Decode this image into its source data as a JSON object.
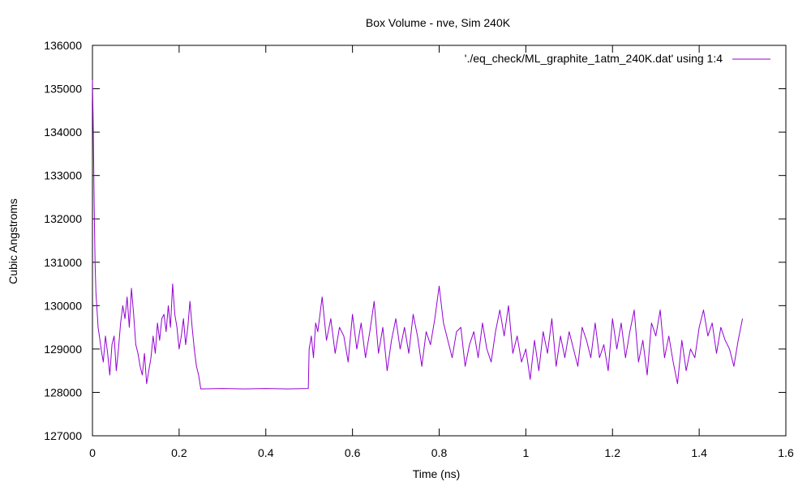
{
  "chart_data": {
    "type": "line",
    "title": "Box Volume - nve, Sim 240K",
    "xlabel": "Time (ns)",
    "ylabel": "Cubic Angstroms",
    "xlim": [
      0,
      1.6
    ],
    "ylim": [
      127000,
      136000
    ],
    "x_ticks": [
      0,
      0.2,
      0.4,
      0.6,
      0.8,
      1,
      1.2,
      1.4,
      1.6
    ],
    "x_tick_labels": [
      "0",
      "0.2",
      "0.4",
      "0.6",
      "0.8",
      "1",
      "1.2",
      "1.4",
      "1.6"
    ],
    "y_ticks": [
      127000,
      128000,
      129000,
      130000,
      131000,
      132000,
      133000,
      134000,
      135000,
      136000
    ],
    "y_tick_labels": [
      "127000",
      "128000",
      "129000",
      "130000",
      "131000",
      "132000",
      "133000",
      "134000",
      "135000",
      "136000"
    ],
    "grid": false,
    "legend_position": "top-right",
    "series": [
      {
        "name": "'./eq_check/ML_graphite_1atm_240K.dat' using 1:4",
        "color": "#9400d3",
        "x": [
          0,
          0.002,
          0.004,
          0.006,
          0.008,
          0.01,
          0.013,
          0.016,
          0.02,
          0.025,
          0.03,
          0.035,
          0.04,
          0.045,
          0.05,
          0.055,
          0.06,
          0.065,
          0.07,
          0.075,
          0.08,
          0.085,
          0.09,
          0.095,
          0.1,
          0.105,
          0.11,
          0.115,
          0.12,
          0.125,
          0.13,
          0.135,
          0.14,
          0.145,
          0.15,
          0.155,
          0.16,
          0.165,
          0.17,
          0.175,
          0.18,
          0.185,
          0.19,
          0.195,
          0.2,
          0.205,
          0.21,
          0.215,
          0.22,
          0.225,
          0.23,
          0.235,
          0.24,
          0.245,
          0.25,
          0.3,
          0.35,
          0.4,
          0.45,
          0.498,
          0.5,
          0.505,
          0.51,
          0.515,
          0.52,
          0.525,
          0.53,
          0.54,
          0.55,
          0.56,
          0.57,
          0.58,
          0.59,
          0.6,
          0.61,
          0.62,
          0.63,
          0.64,
          0.65,
          0.66,
          0.67,
          0.68,
          0.69,
          0.7,
          0.71,
          0.72,
          0.73,
          0.74,
          0.75,
          0.76,
          0.77,
          0.78,
          0.79,
          0.8,
          0.81,
          0.82,
          0.83,
          0.84,
          0.85,
          0.86,
          0.87,
          0.88,
          0.89,
          0.9,
          0.91,
          0.92,
          0.93,
          0.94,
          0.95,
          0.96,
          0.97,
          0.98,
          0.99,
          1.0,
          1.01,
          1.02,
          1.03,
          1.04,
          1.05,
          1.06,
          1.07,
          1.08,
          1.09,
          1.1,
          1.11,
          1.12,
          1.13,
          1.14,
          1.15,
          1.16,
          1.17,
          1.18,
          1.19,
          1.2,
          1.21,
          1.22,
          1.23,
          1.24,
          1.25,
          1.26,
          1.27,
          1.28,
          1.29,
          1.3,
          1.31,
          1.32,
          1.33,
          1.34,
          1.35,
          1.36,
          1.37,
          1.38,
          1.39,
          1.4,
          1.41,
          1.42,
          1.43,
          1.44,
          1.45,
          1.46,
          1.47,
          1.48,
          1.49,
          1.5
        ],
        "y": [
          135200,
          134000,
          132300,
          131000,
          130300,
          130000,
          129500,
          129300,
          129000,
          128700,
          129300,
          128900,
          128400,
          129100,
          129300,
          128500,
          129000,
          129600,
          130000,
          129700,
          130200,
          129500,
          130400,
          129800,
          129100,
          128900,
          128600,
          128400,
          128900,
          128200,
          128500,
          128800,
          129300,
          128900,
          129600,
          129200,
          129700,
          129800,
          129400,
          130000,
          129500,
          130500,
          129800,
          129500,
          129000,
          129300,
          129700,
          129100,
          129500,
          130100,
          129500,
          129000,
          128600,
          128400,
          128080,
          128090,
          128080,
          128090,
          128080,
          128090,
          129000,
          129300,
          128800,
          129600,
          129400,
          129800,
          130200,
          129200,
          129700,
          128900,
          129500,
          129300,
          128700,
          129800,
          129000,
          129600,
          128800,
          129400,
          130100,
          128900,
          129500,
          128500,
          129200,
          129700,
          129000,
          129500,
          128900,
          129800,
          129300,
          128600,
          129400,
          129100,
          129700,
          130450,
          129600,
          129200,
          128800,
          129400,
          129500,
          128600,
          129100,
          129400,
          128800,
          129600,
          129000,
          128700,
          129400,
          129900,
          129300,
          130000,
          128900,
          129300,
          128700,
          129000,
          128300,
          129200,
          128500,
          129400,
          128900,
          129700,
          128600,
          129300,
          128800,
          129400,
          129000,
          128600,
          129500,
          129200,
          128800,
          129600,
          128800,
          129100,
          128500,
          129700,
          129000,
          129600,
          128800,
          129400,
          129900,
          128700,
          129200,
          128400,
          129600,
          129300,
          129900,
          128800,
          129300,
          128700,
          128200,
          129200,
          128500,
          129000,
          128800,
          129500,
          129900,
          129300,
          129600,
          128900,
          129500,
          129200,
          129000,
          128600,
          129200,
          129700
        ]
      }
    ]
  }
}
